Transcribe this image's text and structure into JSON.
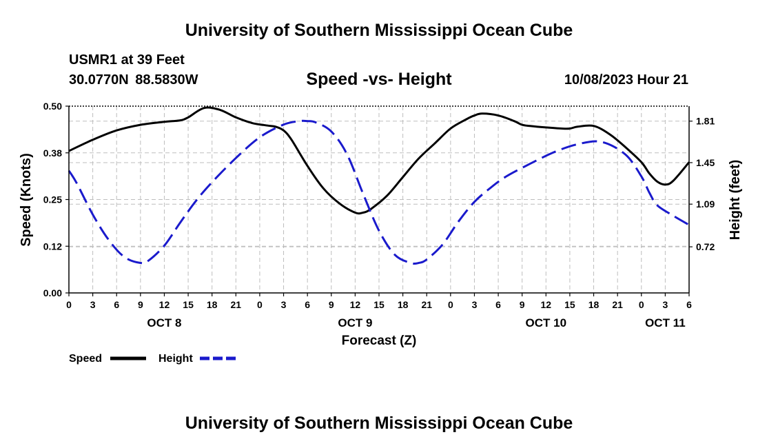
{
  "header": {
    "title": "University of Southern Mississippi Ocean Cube",
    "station": "USMR1 at 39 Feet",
    "coords": "30.0770N  88.5830W",
    "chart_title": "Speed -vs- Height",
    "forecast_time": "10/08/2023 Hour 21"
  },
  "footer": {
    "title": "University of Southern Mississippi Ocean Cube"
  },
  "colors": {
    "speed": "#000000",
    "height": "#1a1acc",
    "grid": "#bdbdbd"
  },
  "chart_data": {
    "type": "line",
    "title": "Speed -vs- Height",
    "xlabel": "Forecast (Z)",
    "ylabel": "Speed (Knots)",
    "y2label": "Height (feet)",
    "x_unit": "hours from Oct 8 00Z",
    "xlim": [
      0,
      78
    ],
    "ylim": [
      0,
      0.5
    ],
    "y2lim": [
      0.32,
      1.94
    ],
    "x_ticks": [
      0,
      3,
      6,
      9,
      12,
      15,
      18,
      21,
      24,
      27,
      30,
      33,
      36,
      39,
      42,
      45,
      48,
      51,
      54,
      57,
      60,
      63,
      66,
      69,
      72,
      75,
      78
    ],
    "x_tick_labels": [
      "0",
      "3",
      "6",
      "9",
      "12",
      "15",
      "18",
      "21",
      "0",
      "3",
      "6",
      "9",
      "12",
      "15",
      "18",
      "21",
      "0",
      "3",
      "6",
      "9",
      "12",
      "15",
      "18",
      "21",
      "0",
      "3",
      "6"
    ],
    "y_ticks": [
      0,
      0.125,
      0.25,
      0.375,
      0.5
    ],
    "y_tick_labels": [
      "0.00",
      "0.12",
      "0.25",
      "0.38",
      "0.50"
    ],
    "y2_ticks": [
      0.72,
      1.09,
      1.45,
      1.81
    ],
    "y2_tick_labels": [
      "0.72",
      "1.09",
      "1.45",
      "1.81"
    ],
    "day_labels": [
      {
        "label": "OCT 8",
        "x": 12
      },
      {
        "label": "OCT 9",
        "x": 36
      },
      {
        "label": "OCT 10",
        "x": 60
      },
      {
        "label": "OCT 11",
        "x": 75
      }
    ],
    "legend": [
      {
        "name": "Speed",
        "style": "solid"
      },
      {
        "name": "Height",
        "style": "dashed"
      }
    ],
    "series": [
      {
        "name": "Speed",
        "axis": "left",
        "x": [
          0,
          3,
          6,
          9,
          12,
          14,
          15,
          17,
          19,
          21,
          23,
          25,
          26,
          27,
          28,
          30,
          32,
          34,
          36,
          37,
          38,
          40,
          42,
          44,
          46,
          48,
          50,
          51,
          52,
          54,
          56,
          57,
          58,
          60,
          62,
          63,
          64,
          66,
          68,
          70,
          72,
          73,
          74,
          75,
          76,
          78
        ],
        "values": [
          0.38,
          0.41,
          0.435,
          0.45,
          0.458,
          0.462,
          0.47,
          0.495,
          0.49,
          0.47,
          0.455,
          0.448,
          0.445,
          0.435,
          0.41,
          0.34,
          0.28,
          0.24,
          0.215,
          0.215,
          0.225,
          0.26,
          0.31,
          0.36,
          0.4,
          0.44,
          0.465,
          0.475,
          0.48,
          0.475,
          0.46,
          0.45,
          0.447,
          0.443,
          0.44,
          0.44,
          0.445,
          0.447,
          0.425,
          0.39,
          0.35,
          0.32,
          0.298,
          0.29,
          0.3,
          0.35
        ]
      },
      {
        "name": "Height",
        "axis": "right",
        "x": [
          0,
          1,
          3,
          5,
          7,
          9,
          10,
          12,
          14,
          16,
          18,
          21,
          24,
          27,
          29,
          30,
          31,
          33,
          35,
          37,
          39,
          41,
          43,
          44,
          45,
          47,
          49,
          51,
          53,
          55,
          58,
          61,
          64,
          67,
          70,
          72,
          73,
          74,
          76,
          78
        ],
        "values": [
          1.38,
          1.27,
          1.0,
          0.78,
          0.63,
          0.58,
          0.6,
          0.73,
          0.93,
          1.12,
          1.28,
          1.49,
          1.67,
          1.78,
          1.81,
          1.81,
          1.8,
          1.72,
          1.52,
          1.18,
          0.86,
          0.65,
          0.58,
          0.58,
          0.61,
          0.74,
          0.94,
          1.11,
          1.23,
          1.33,
          1.44,
          1.54,
          1.61,
          1.63,
          1.52,
          1.33,
          1.19,
          1.08,
          0.99,
          0.91
        ]
      }
    ]
  }
}
